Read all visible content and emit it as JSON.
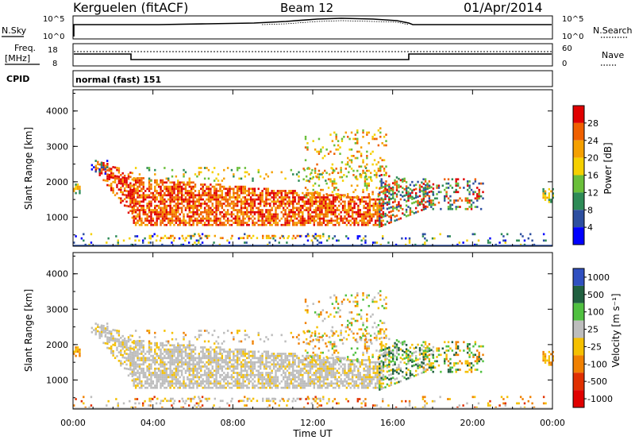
{
  "header": {
    "station": "Kerguelen (fitACF)",
    "beam": "Beam 12",
    "date": "01/Apr/2014"
  },
  "nsky_panel": {
    "label": "N.Sky",
    "right_label": "N.Search",
    "tick_top": "10^5",
    "tick_bottom": "10^0"
  },
  "freq_panel": {
    "label_line1": "Freq.",
    "label_line2": "[MHz]",
    "right_label": "Nave",
    "left_ticks": [
      "18",
      "8"
    ],
    "right_ticks": [
      "60",
      "0"
    ]
  },
  "cpid_panel": {
    "label": "CPID",
    "value": "normal (fast) 151"
  },
  "colors": {
    "power_scale": [
      "#0000ff",
      "#2d4fa0",
      "#2e8b57",
      "#6abf3a",
      "#f5d000",
      "#f5a000",
      "#f06000",
      "#e00000"
    ],
    "velocity_scale": [
      "#3050c0",
      "#206040",
      "#50c040",
      "#bdbdbd",
      "#f5c000",
      "#f08000",
      "#e03000",
      "#e00000"
    ]
  },
  "chart_data": [
    {
      "type": "heatmap",
      "panel": "power",
      "ylabel": "Slant Range [km]",
      "ylim": [
        180,
        4600
      ],
      "yticks": [
        "1000",
        "2000",
        "3000",
        "4000"
      ],
      "xlim": [
        0,
        24
      ],
      "colorbar_label": "Power [dB]",
      "colorbar_ticks": [
        "4",
        "8",
        "12",
        "16",
        "20",
        "24",
        "28"
      ]
    },
    {
      "type": "heatmap",
      "panel": "velocity",
      "ylabel": "Slant Range [km]",
      "ylim": [
        180,
        4600
      ],
      "yticks": [
        "1000",
        "2000",
        "3000",
        "4000"
      ],
      "xlim": [
        0,
        24
      ],
      "xlabel": "Time UT",
      "xticks": [
        "00:00",
        "04:00",
        "08:00",
        "12:00",
        "16:00",
        "20:00",
        "00:00"
      ],
      "colorbar_label": "Velocity [m s⁻¹]",
      "colorbar_ticks": [
        "1000",
        "500",
        "100",
        "25",
        "-25",
        "-100",
        "-500",
        "-1000"
      ]
    }
  ]
}
